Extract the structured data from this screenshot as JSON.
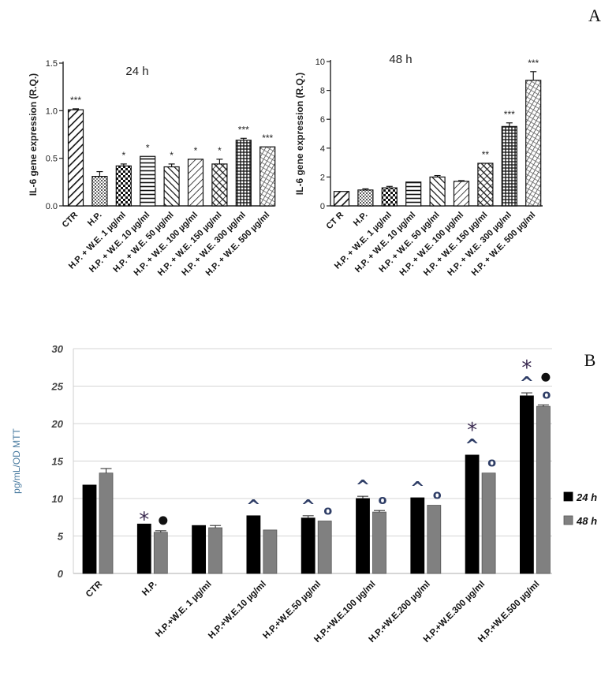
{
  "panel_labels": {
    "a": "A",
    "b": "B"
  },
  "chart_data": [
    {
      "type": "bar",
      "title": "24 h",
      "ylabel": "IL-6 gene expression (R.Q.)",
      "ylim": [
        0,
        1.5
      ],
      "yticks": [
        "0.0",
        "0.5",
        "1.0",
        "1.5"
      ],
      "categories": [
        "CTR",
        "H.P.",
        "H.P. + W.E. 1 µg/ml",
        "H.P. + W.E. 10 µg/ml",
        "H.P. + W.E. 50 µg/ml",
        "H.P. + W.E. 100 µg/ml",
        "H.P. + W.E. 150 µg/ml",
        "H.P. + W.E. 300 µg/ml",
        "H.P. + W.E. 500 µg/ml"
      ],
      "values": [
        1.01,
        0.31,
        0.42,
        0.52,
        0.41,
        0.49,
        0.44,
        0.69,
        0.62
      ],
      "errors": [
        0.01,
        0.05,
        0.02,
        0.0,
        0.03,
        0.0,
        0.05,
        0.02,
        0.0
      ],
      "significance": [
        "***",
        "",
        "*",
        "*",
        "*",
        "*",
        "*",
        "***",
        "***"
      ]
    },
    {
      "type": "bar",
      "title": "48 h",
      "ylabel": "IL-6 gene expression (R.Q.)",
      "ylim": [
        0,
        10
      ],
      "yticks": [
        "0",
        "2",
        "4",
        "6",
        "8",
        "10"
      ],
      "categories": [
        "CT R",
        "H.P.",
        "H.P. + W.E. 1 µg/ml",
        "H.P. + W.E. 10 µg/ml",
        "H.P. + W.E. 50 µg/ml",
        "H.P. + W.E. 100 µg/ml",
        "H.P. + W.E. 150 µg/ml",
        "H.P. + W.E. 300 µg/ml",
        "H.P. + W.E. 500 µg/ml"
      ],
      "values": [
        1.0,
        1.1,
        1.25,
        1.65,
        2.0,
        1.7,
        2.95,
        5.5,
        8.7
      ],
      "errors": [
        0.0,
        0.08,
        0.1,
        0.0,
        0.1,
        0.05,
        0.0,
        0.25,
        0.6
      ],
      "significance": [
        "",
        "",
        "",
        "",
        "",
        "",
        "**",
        "***",
        "***"
      ]
    },
    {
      "type": "bar",
      "ylabel": "pg/mL/OD MTT",
      "ylim": [
        0,
        30
      ],
      "yticks": [
        "0",
        "5",
        "10",
        "15",
        "20",
        "25",
        "30"
      ],
      "grid": true,
      "legend_position": "right",
      "categories": [
        "CTR",
        "H.P.",
        "H.P.+W.E. 1 µg/ml",
        "H.P.+W.E.10 µg/ml",
        "H.P.+W.E.50 µg/ml",
        "H.P.+W.E.100 µg/ml",
        "H.P.+W.E.200 µg/ml",
        "H.P.+W.E.300 µg/ml",
        "H.P.+W.E.500 µg/ml"
      ],
      "series": [
        {
          "name": "24 h",
          "color": "#000000",
          "values": [
            11.8,
            6.6,
            6.4,
            7.7,
            7.4,
            10.0,
            10.1,
            15.8,
            23.7
          ],
          "errors": [
            0.0,
            0.0,
            0.0,
            0.0,
            0.3,
            0.3,
            0.0,
            0.0,
            0.4
          ]
        },
        {
          "name": "48 h",
          "color": "#808080",
          "values": [
            13.4,
            5.5,
            6.1,
            5.8,
            7.0,
            8.2,
            9.1,
            13.4,
            22.3
          ],
          "errors": [
            0.6,
            0.2,
            0.3,
            0.0,
            0.0,
            0.2,
            0.0,
            0.0,
            0.2
          ]
        }
      ],
      "annotations_24h": [
        "",
        "*",
        "",
        "^",
        "^",
        "^",
        "^",
        "* ^",
        "* ^"
      ],
      "annotations_48h": [
        "",
        "●",
        "",
        "",
        "o",
        "o",
        "o",
        "o",
        "● o"
      ]
    }
  ]
}
